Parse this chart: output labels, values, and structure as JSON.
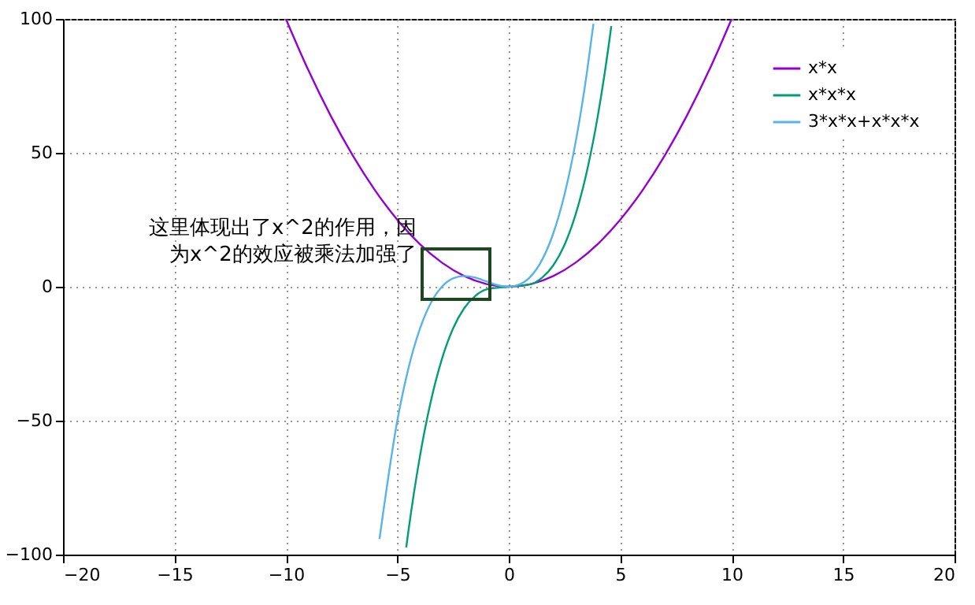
{
  "chart_data": {
    "type": "line",
    "xlim": [
      -20,
      20
    ],
    "xticks": [
      -20,
      -15,
      -10,
      -5,
      0,
      5,
      10,
      15,
      20
    ],
    "ylim": [
      -100,
      100
    ],
    "yticks": [
      -100,
      -50,
      0,
      50,
      100
    ],
    "grid": true,
    "legend": "top right",
    "annotations": [
      {
        "text": "这里体现出了x^2的作用，因为x^2的效应被乘法加强了",
        "x": -4,
        "y": 15
      }
    ],
    "series": [
      {
        "name": "x*x",
        "color": "#9400d3",
        "x": [
          -10,
          -9,
          -8,
          -7,
          -6,
          -5,
          -4,
          -3,
          -2,
          -1,
          0,
          1,
          2,
          3,
          4,
          5,
          6,
          7,
          8,
          9,
          10
        ],
        "values": [
          100,
          81,
          64,
          49,
          36,
          25,
          16,
          9,
          4,
          1,
          0,
          1,
          4,
          9,
          16,
          25,
          36,
          49,
          64,
          81,
          100
        ]
      },
      {
        "name": "x*x*x",
        "color": "#009e73",
        "x": [
          -4.6,
          -4.5,
          -4,
          -3.5,
          -3,
          -2.5,
          -2,
          -1.5,
          -1,
          0,
          1,
          1.5,
          2,
          2.5,
          3,
          3.5,
          4,
          4.5,
          4.6
        ],
        "values": [
          -97.3,
          -91.1,
          -64,
          -42.9,
          -27,
          -15.6,
          -8,
          -3.4,
          -1,
          0,
          1,
          3.4,
          8,
          15.6,
          27,
          42.9,
          64,
          91.1,
          97.3
        ]
      },
      {
        "name": "3*x*x+x*x*x",
        "color": "#56b4e9",
        "x": [
          -5.8,
          -5,
          -4.5,
          -4,
          -3.5,
          -3,
          -2.5,
          -2,
          -1.5,
          -1,
          -0.5,
          0,
          0.5,
          1,
          1.5,
          2,
          2.5,
          3,
          3.5,
          3.8
        ],
        "values": [
          -94.2,
          -50,
          -30.4,
          -16,
          -6.1,
          0,
          3.1,
          4,
          3.4,
          2,
          0.6,
          0,
          0.9,
          4,
          10.1,
          20,
          34.4,
          54,
          79.6,
          98.2
        ]
      }
    ]
  }
}
